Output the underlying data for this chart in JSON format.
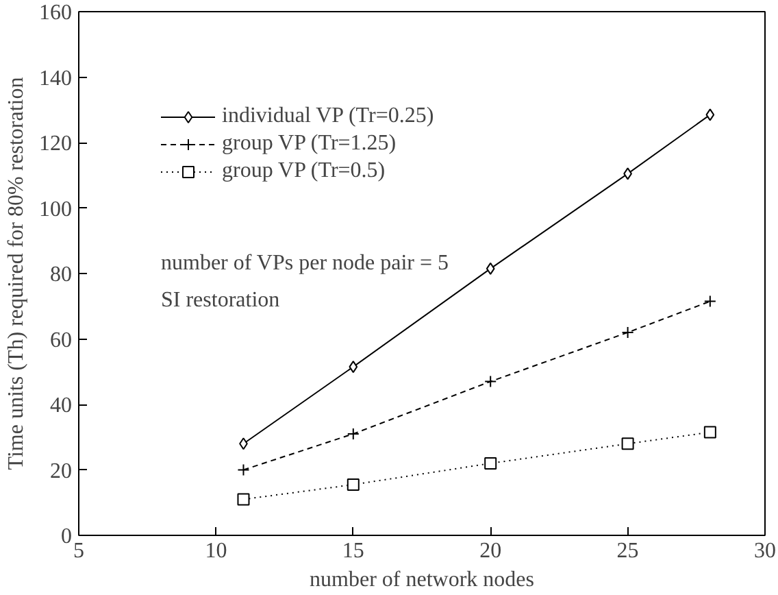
{
  "chart_data": {
    "type": "line",
    "xlabel": "number of network nodes",
    "ylabel": "Time units (Th) required for 80% restoration",
    "x": [
      11,
      15,
      20,
      25,
      28
    ],
    "series": [
      {
        "name": "individual VP (Tr=0.25)",
        "color": "#000000",
        "marker": "diamond",
        "line_style": "solid",
        "values": [
          28,
          51.5,
          81.5,
          110.5,
          128.5
        ]
      },
      {
        "name": "group VP (Tr=1.25)",
        "color": "#000000",
        "marker": "cross",
        "line_style": "dashed",
        "values": [
          20,
          31,
          47,
          62,
          71.5
        ]
      },
      {
        "name": "group VP (Tr=0.5)",
        "color": "#000000",
        "marker": "square",
        "line_style": "dotted",
        "values": [
          11,
          15.5,
          22,
          28,
          31.5
        ]
      }
    ],
    "xlim": [
      5,
      30
    ],
    "xticks": [
      5,
      10,
      15,
      20,
      25,
      30
    ],
    "ylim": [
      0,
      160
    ],
    "yticks": [
      0,
      20,
      40,
      60,
      80,
      100,
      120,
      140,
      160
    ],
    "annotations": [
      "number of VPs per node pair = 5",
      "SI restoration"
    ],
    "legend": "top left",
    "grid": false
  }
}
